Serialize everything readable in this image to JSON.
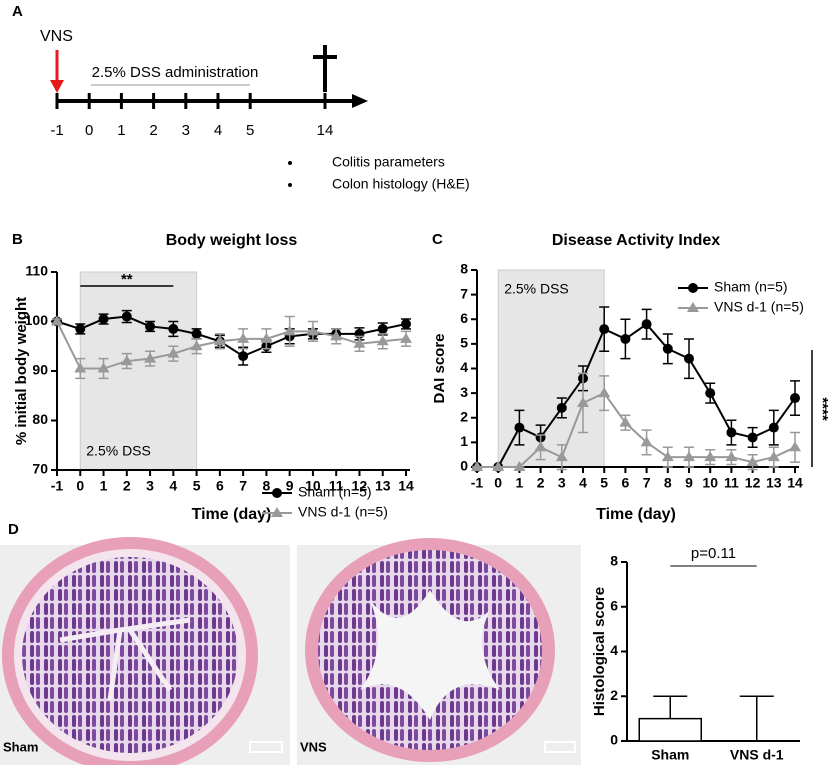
{
  "panel_labels": [
    "A",
    "B",
    "C",
    "D"
  ],
  "timeline": {
    "treatment": "VNS",
    "administration": "2.5% DSS administration",
    "days": [
      -1,
      0,
      1,
      2,
      3,
      4,
      5,
      14
    ],
    "bullets": [
      "Colitis parameters",
      "Colon histology (H&E)"
    ]
  },
  "images": [
    {
      "label": "Sham"
    },
    {
      "label": "VNS"
    }
  ],
  "chart_data": [
    {
      "type": "line",
      "title": "Body weight loss",
      "x_label": "Time (day)",
      "y_label": "% initial body weight",
      "x": [
        -1,
        0,
        1,
        2,
        3,
        4,
        5,
        6,
        7,
        8,
        9,
        10,
        11,
        12,
        13,
        14
      ],
      "xlim": [
        -1,
        14
      ],
      "xticks": [
        -1,
        0,
        1,
        2,
        3,
        4,
        5,
        6,
        7,
        8,
        9,
        10,
        11,
        12,
        13,
        14
      ],
      "ylim": [
        70,
        110
      ],
      "yticks": [
        70,
        80,
        90,
        100,
        110
      ],
      "shaded_region": [
        0,
        5
      ],
      "shaded_label": "2.5% DSS",
      "significance": {
        "label": "**",
        "x_range": [
          0,
          4
        ]
      },
      "series": [
        {
          "name": "Sham (n=5)",
          "color": "#000000",
          "marker": "circle",
          "values": [
            100,
            98.5,
            100.5,
            101,
            99,
            98.5,
            97.5,
            96,
            93,
            95,
            97,
            97.5,
            97.5,
            97.5,
            98.5,
            99.5
          ],
          "errors": [
            0.5,
            1,
            1,
            1.2,
            1,
            1.5,
            1,
            1.2,
            1.8,
            1.2,
            1.5,
            1,
            1,
            1.2,
            1.2,
            1
          ]
        },
        {
          "name": "VNS d-1 (n=5)",
          "color": "#999999",
          "marker": "triangle",
          "values": [
            100,
            90.5,
            90.5,
            92,
            92.5,
            93.5,
            95,
            96,
            96.5,
            96.5,
            98,
            98,
            97,
            95.5,
            96,
            96.5
          ],
          "errors": [
            0.5,
            2,
            2,
            1.5,
            1.5,
            1.5,
            1.5,
            1.5,
            2,
            2,
            3,
            2,
            1.5,
            1.5,
            1.5,
            1.5
          ]
        }
      ]
    },
    {
      "type": "line",
      "title": "Disease Activity Index",
      "x_label": "Time (day)",
      "y_label": "DAI score",
      "x": [
        -1,
        0,
        1,
        2,
        3,
        4,
        5,
        6,
        7,
        8,
        9,
        10,
        11,
        12,
        13,
        14
      ],
      "xlim": [
        -1,
        14
      ],
      "xticks": [
        -1,
        0,
        1,
        2,
        3,
        4,
        5,
        6,
        7,
        8,
        9,
        10,
        11,
        12,
        13,
        14
      ],
      "ylim": [
        0,
        8
      ],
      "yticks": [
        0,
        1,
        2,
        3,
        4,
        5,
        6,
        7,
        8
      ],
      "shaded_region": [
        0,
        5
      ],
      "shaded_label": "2.5% DSS",
      "significance": {
        "label": "****"
      },
      "series": [
        {
          "name": "Sham (n=5)",
          "color": "#000000",
          "marker": "circle",
          "values": [
            0,
            0,
            1.6,
            1.2,
            2.4,
            3.6,
            5.6,
            5.2,
            5.8,
            4.8,
            4.4,
            3.0,
            1.4,
            1.2,
            1.6,
            2.8
          ],
          "errors": [
            0,
            0,
            0.7,
            0.5,
            0.4,
            0.5,
            0.9,
            0.8,
            0.6,
            0.6,
            0.8,
            0.4,
            0.5,
            0.4,
            0.7,
            0.7
          ]
        },
        {
          "name": "VNS d-1 (n=5)",
          "color": "#999999",
          "marker": "triangle",
          "values": [
            0,
            0,
            0,
            0.8,
            0.4,
            2.6,
            3.0,
            1.8,
            1.0,
            0.4,
            0.4,
            0.4,
            0.4,
            0.2,
            0.4,
            0.8
          ],
          "errors": [
            0,
            0,
            0,
            0.5,
            0.5,
            1.2,
            0.7,
            0.3,
            0.5,
            0.4,
            0.4,
            0.3,
            0.3,
            0.3,
            0.4,
            0.6
          ]
        }
      ]
    },
    {
      "type": "bar",
      "y_label": "Histological score",
      "categories": [
        "Sham",
        "VNS d-1"
      ],
      "values": [
        1,
        0
      ],
      "errors": [
        1,
        2
      ],
      "ylim": [
        0,
        8
      ],
      "yticks": [
        0,
        2,
        4,
        6,
        8
      ],
      "annotation": "p=0.11",
      "color": "#ffffff"
    }
  ]
}
